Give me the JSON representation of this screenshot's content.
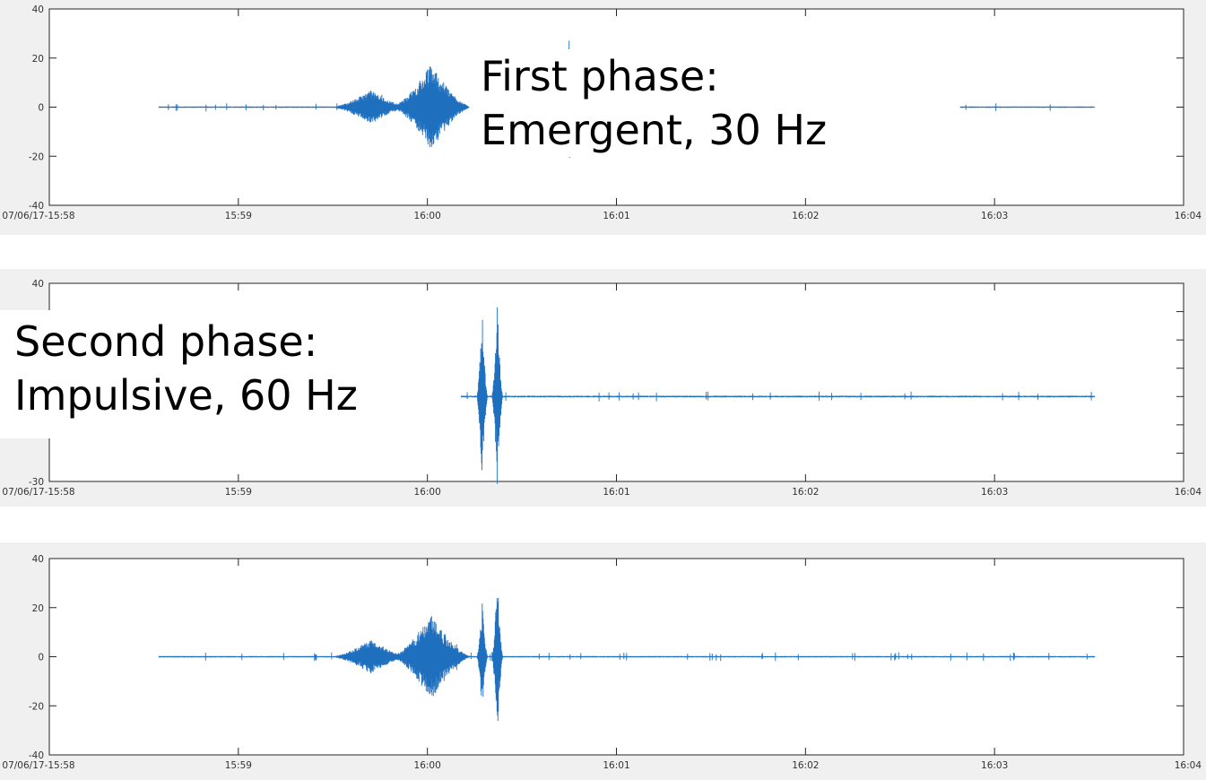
{
  "chart_data": [
    {
      "type": "line",
      "name": "panel-1",
      "ylim": [
        -40,
        40
      ],
      "yticks": [
        -40,
        -20,
        0,
        20,
        40
      ],
      "ytick_labels": [
        "-40",
        "-20",
        "0",
        "20",
        "40"
      ],
      "xlim_minutes": [
        0,
        6
      ],
      "xtick_labels": [
        "07/06/17-15:58",
        "15:59",
        "16:00",
        "16:01",
        "16:02",
        "16:03",
        "16:04"
      ],
      "grid": false,
      "color": "#1f6fbf",
      "series": [
        {
          "segments": [
            [
              0.58,
              2.22
            ],
            [
              2.74,
              2.76
            ],
            [
              4.82,
              5.53
            ]
          ],
          "bursts": [
            {
              "t": 1.7,
              "dur": 0.22,
              "amp": 7
            },
            {
              "t": 2.02,
              "dur": 0.22,
              "amp": 18
            },
            {
              "t": 2.75,
              "dur": 0.01,
              "amp": 35
            }
          ]
        }
      ]
    },
    {
      "type": "line",
      "name": "panel-2",
      "ylim": [
        -30,
        40
      ],
      "yticks": [
        -30,
        40
      ],
      "ytick_labels": [
        "-30",
        "40"
      ],
      "xlim_minutes": [
        0,
        6
      ],
      "xtick_labels": [
        "07/06/17-15:58",
        "15:59",
        "16:00",
        "16:01",
        "16:02",
        "16:03",
        "16:04"
      ],
      "grid": false,
      "color": "#1f6fbf",
      "series": [
        {
          "segments": [
            [
              2.18,
              5.53
            ]
          ],
          "bursts": [
            {
              "t": 2.29,
              "dur": 0.03,
              "amp": 30
            },
            {
              "t": 2.37,
              "dur": 0.03,
              "amp": 33
            }
          ]
        }
      ]
    },
    {
      "type": "line",
      "name": "panel-3",
      "ylim": [
        -40,
        40
      ],
      "yticks": [
        -40,
        -20,
        0,
        20,
        40
      ],
      "ytick_labels": [
        "-40",
        "-20",
        "0",
        "20",
        "40"
      ],
      "xlim_minutes": [
        0,
        6
      ],
      "xtick_labels": [
        "07/06/17-15:58",
        "15:59",
        "16:00",
        "16:01",
        "16:02",
        "16:03",
        "16:04"
      ],
      "grid": false,
      "color": "#1f6fbf",
      "series": [
        {
          "segments": [
            [
              0.58,
              5.53
            ]
          ],
          "bursts": [
            {
              "t": 1.7,
              "dur": 0.22,
              "amp": 7
            },
            {
              "t": 2.02,
              "dur": 0.22,
              "amp": 18
            },
            {
              "t": 2.29,
              "dur": 0.03,
              "amp": 22
            },
            {
              "t": 2.37,
              "dur": 0.03,
              "amp": 33
            }
          ]
        }
      ]
    }
  ],
  "annotations": {
    "first_phase": {
      "line1": "First phase:",
      "line2": "Emergent, 30 Hz"
    },
    "second_phase": {
      "line1": "Second phase:",
      "line2": "Impulsive, 60 Hz"
    }
  }
}
